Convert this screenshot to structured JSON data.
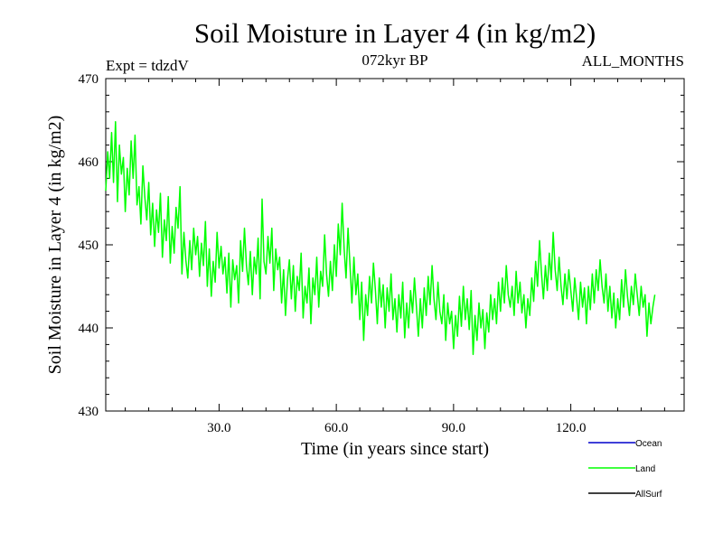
{
  "chart_data": {
    "type": "line",
    "title": "Soil Moisture in Layer 4 (in kg/m2)",
    "subtitle_left": "Expt = tdzdV",
    "subtitle_center": "072kyr BP",
    "subtitle_right": "ALL_MONTHS",
    "xlabel": "Time (in years since start)",
    "ylabel": "Soil Moisture in Layer 4 (in kg/m2)",
    "xlim": [
      1,
      149
    ],
    "ylim": [
      430,
      470
    ],
    "x_ticks": [
      30,
      60,
      90,
      120
    ],
    "x_tick_labels": [
      "30.0",
      "60.0",
      "90.0",
      "120.0"
    ],
    "y_ticks": [
      430,
      440,
      450,
      460,
      470
    ],
    "y_tick_labels": [
      "430",
      "440",
      "450",
      "460",
      "470"
    ],
    "legend": [
      {
        "name": "Ocean",
        "color": "#0000cc"
      },
      {
        "name": "Land",
        "color": "#00ff00"
      },
      {
        "name": "AllSurf",
        "color": "#000000"
      }
    ],
    "series": [
      {
        "name": "Land",
        "color": "#00ff00",
        "x_start": 1,
        "x_step": 0.5,
        "values": [
          456.5,
          461.2,
          458.0,
          463.5,
          457.5,
          464.8,
          455.2,
          462.0,
          458.5,
          460.5,
          454.0,
          459.2,
          456.0,
          462.5,
          458.0,
          463.2,
          454.8,
          457.0,
          452.5,
          459.5,
          455.8,
          453.0,
          457.5,
          451.2,
          455.0,
          449.8,
          454.2,
          451.5,
          456.2,
          448.5,
          453.0,
          450.5,
          455.8,
          447.8,
          452.2,
          449.0,
          454.5,
          452.0,
          457.0,
          446.5,
          451.5,
          448.2,
          446.0,
          450.5,
          447.0,
          452.0,
          448.8,
          451.0,
          446.2,
          450.2,
          447.5,
          452.8,
          445.0,
          449.5,
          443.8,
          448.0,
          445.5,
          451.5,
          447.2,
          449.8,
          446.5,
          448.5,
          444.2,
          449.0,
          442.5,
          448.2,
          445.8,
          447.5,
          443.0,
          450.5,
          446.8,
          452.0,
          447.5,
          445.2,
          449.2,
          444.0,
          448.5,
          446.5,
          450.8,
          443.5,
          455.5,
          448.0,
          446.5,
          451.0,
          447.8,
          452.0,
          444.5,
          449.5,
          447.0,
          448.5,
          443.0,
          447.0,
          441.5,
          445.8,
          448.2,
          443.5,
          447.5,
          442.0,
          446.2,
          444.5,
          449.0,
          441.2,
          445.0,
          443.0,
          447.2,
          440.5,
          446.0,
          444.0,
          448.5,
          442.5,
          446.8,
          445.0,
          451.2,
          446.5,
          443.8,
          448.0,
          444.5,
          450.0,
          446.2,
          452.5,
          448.8,
          455.0,
          449.5,
          446.0,
          452.0,
          447.5,
          443.0,
          448.5,
          444.0,
          446.5,
          441.0,
          445.5,
          438.5,
          444.0,
          441.5,
          446.2,
          443.0,
          447.8,
          444.5,
          440.5,
          446.0,
          442.5,
          445.2,
          440.0,
          444.8,
          442.0,
          446.5,
          441.0,
          443.5,
          439.5,
          444.0,
          441.2,
          445.5,
          438.8,
          443.0,
          440.0,
          444.5,
          441.8,
          446.0,
          442.5,
          439.0,
          443.5,
          440.0,
          444.8,
          441.5,
          446.2,
          442.8,
          447.5,
          443.5,
          441.0,
          445.5,
          442.0,
          440.5,
          444.0,
          438.5,
          443.0,
          440.5,
          442.0,
          437.5,
          441.5,
          439.0,
          443.8,
          440.2,
          445.0,
          441.0,
          443.5,
          439.8,
          444.5,
          436.8,
          441.5,
          438.5,
          443.0,
          440.0,
          442.2,
          437.5,
          441.8,
          439.5,
          444.0,
          441.0,
          443.5,
          440.5,
          445.5,
          442.0,
          446.0,
          443.0,
          447.5,
          444.0,
          442.5,
          445.0,
          441.5,
          446.8,
          443.0,
          445.5,
          441.8,
          444.0,
          440.0,
          443.5,
          441.5,
          446.0,
          443.2,
          448.0,
          445.0,
          450.5,
          446.5,
          443.5,
          447.5,
          444.5,
          449.0,
          445.8,
          451.5,
          447.0,
          444.5,
          448.5,
          445.0,
          442.8,
          446.5,
          443.5,
          447.0,
          444.5,
          442.0,
          446.0,
          443.5,
          441.0,
          445.5,
          442.5,
          444.8,
          440.5,
          445.0,
          442.2,
          446.5,
          443.0,
          447.0,
          444.5,
          448.2,
          445.0,
          443.0,
          446.5,
          442.0,
          445.0,
          441.2,
          444.2,
          440.0,
          443.5,
          441.0,
          445.8,
          442.5,
          447.0,
          443.8,
          441.5,
          445.0,
          442.8,
          446.5,
          444.0,
          441.5,
          445.0,
          442.5,
          444.0,
          439.0,
          443.0,
          440.5,
          442.5,
          444.0
        ]
      }
    ]
  }
}
